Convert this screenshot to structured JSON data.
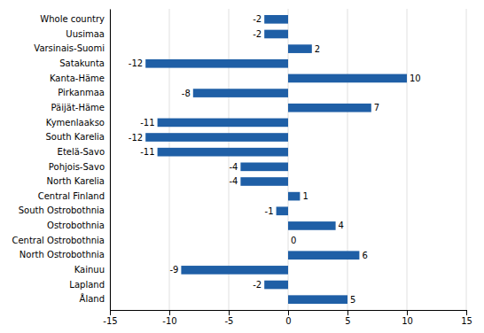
{
  "chart_data": {
    "type": "bar",
    "orientation": "horizontal",
    "categories": [
      "Whole country",
      "Uusimaa",
      "Varsinais-Suomi",
      "Satakunta",
      "Kanta-Häme",
      "Pirkanmaa",
      "Päijät-Häme",
      "Kymenlaakso",
      "South Karelia",
      "Etelä-Savo",
      "Pohjois-Savo",
      "North Karelia",
      "Central Finland",
      "South Ostrobothnia",
      "Ostrobothnia",
      "Central Ostrobothnia",
      "North Ostrobothnia",
      "Kainuu",
      "Lapland",
      "Åland"
    ],
    "values": [
      -2,
      -2,
      2,
      -12,
      10,
      -8,
      7,
      -11,
      -12,
      -11,
      -4,
      -4,
      1,
      -1,
      4,
      0,
      6,
      -9,
      -2,
      5
    ],
    "color": "#1f5fa6",
    "xlim": [
      -15,
      15
    ],
    "xticks": [
      -15,
      -10,
      -5,
      0,
      5,
      10,
      15
    ],
    "grid": true,
    "data_labels": true
  }
}
